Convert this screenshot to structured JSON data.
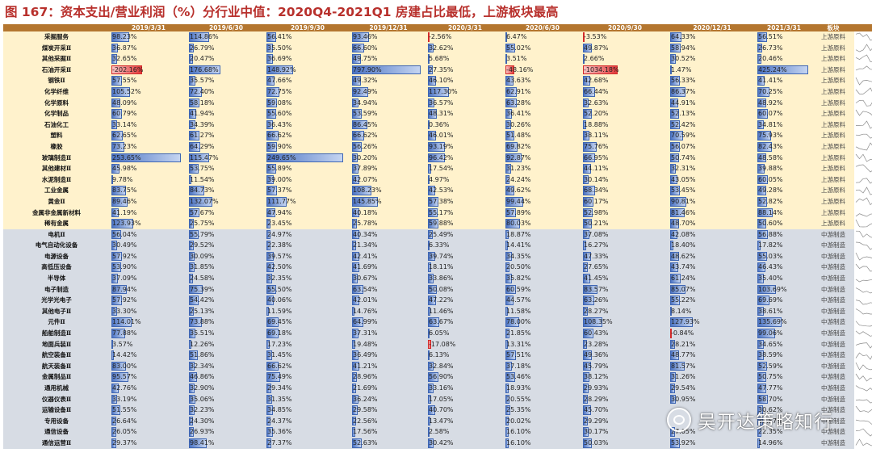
{
  "title": "图 167：资本支出/营业利润（%）分行业中值：2020Q4-2021Q1 房建占比最低，上游板块最高",
  "watermark": "吴开达策略知行",
  "colors": {
    "bar": "#4c74c4",
    "neg_bar": "#e33b3b",
    "header": "#b4762f",
    "upstream_bg": "#fff2cc",
    "midstream_bg": "#d7dce4"
  },
  "chart_data": {
    "type": "table",
    "columns": [
      "",
      "2019/3/31",
      "2019/6/30",
      "2019/9/30",
      "2019/12/31",
      "2020/3/31",
      "2020/6/30",
      "2020/9/30",
      "2020/12/31",
      "2021/3/31",
      "板块",
      ""
    ],
    "unit": "%",
    "rows": [
      {
        "name": "采掘服务",
        "group": "上游原料",
        "values": [
          "98.23%",
          "114.86%",
          "56.41%",
          "93.46%",
          "-2.56%",
          "6.47%",
          "-3.53%",
          "64.33%",
          "56.51%"
        ]
      },
      {
        "name": "煤炭开采Ⅱ",
        "group": "上游原料",
        "values": [
          "36.87%",
          "26.79%",
          "35.50%",
          "66.60%",
          "32.62%",
          "55.02%",
          "49.87%",
          "58.94%",
          "26.73%"
        ]
      },
      {
        "name": "其他采掘Ⅱ",
        "group": "上游原料",
        "values": [
          "32.65%",
          "20.47%",
          "36.69%",
          "49.75%",
          "5.68%",
          "3.51%",
          "2.66%",
          "30.52%",
          "20.46%"
        ]
      },
      {
        "name": "石油开采Ⅱ",
        "group": "上游原料",
        "values": [
          "-202.16%",
          "176.68%",
          "148.92%",
          "797.90%",
          "27.35%",
          "-48.16%",
          "-1034.18%",
          "1.47%",
          "425.24%"
        ]
      },
      {
        "name": "钢铁Ⅱ",
        "group": "上游原料",
        "values": [
          "57.55%",
          "35.57%",
          "47.66%",
          "49.32%",
          "46.10%",
          "43.63%",
          "42.68%",
          "56.33%",
          "41.41%"
        ]
      },
      {
        "name": "化学纤维",
        "group": "上游原料",
        "values": [
          "105.52%",
          "72.40%",
          "72.75%",
          "92.49%",
          "117.30%",
          "62.91%",
          "66.44%",
          "86.37%",
          "70.25%"
        ]
      },
      {
        "name": "化学原料",
        "group": "上游原料",
        "values": [
          "48.09%",
          "58.18%",
          "59.08%",
          "34.94%",
          "36.57%",
          "63.28%",
          "32.63%",
          "44.91%",
          "48.92%"
        ]
      },
      {
        "name": "化学制品",
        "group": "上游原料",
        "values": [
          "60.79%",
          "41.94%",
          "55.60%",
          "53.59%",
          "48.31%",
          "36.41%",
          "52.20%",
          "52.13%",
          "60.07%"
        ]
      },
      {
        "name": "石油化工",
        "group": "上游原料",
        "values": [
          "33.14%",
          "34.39%",
          "36.43%",
          "86.45%",
          "0.36%",
          "30.26%",
          "18.88%",
          "52.42%",
          "34.81%"
        ]
      },
      {
        "name": "塑料",
        "group": "上游原料",
        "values": [
          "62.65%",
          "61.27%",
          "66.62%",
          "66.62%",
          "46.01%",
          "51.48%",
          "38.11%",
          "70.59%",
          "75.93%"
        ]
      },
      {
        "name": "橡胶",
        "group": "上游原料",
        "values": [
          "73.23%",
          "64.29%",
          "59.90%",
          "56.26%",
          "93.19%",
          "69.82%",
          "75.76%",
          "56.07%",
          "82.43%"
        ]
      },
      {
        "name": "玻璃制造Ⅱ",
        "group": "上游原料",
        "values": [
          "253.65%",
          "115.47%",
          "249.65%",
          "30.20%",
          "96.42%",
          "92.87%",
          "66.95%",
          "50.74%",
          "48.58%"
        ]
      },
      {
        "name": "其他建材Ⅱ",
        "group": "上游原料",
        "values": [
          "45.98%",
          "53.75%",
          "55.89%",
          "37.89%",
          "17.54%",
          "31.23%",
          "44.11%",
          "32.31%",
          "39.88%"
        ]
      },
      {
        "name": "水泥制造Ⅱ",
        "group": "上游原料",
        "values": [
          "9.78%",
          "11.54%",
          "39.00%",
          "42.07%",
          "4.97%",
          "24.24%",
          "30.14%",
          "43.05%",
          "60.05%"
        ]
      },
      {
        "name": "工业金属",
        "group": "上游原料",
        "values": [
          "83.75%",
          "84.73%",
          "57.37%",
          "108.23%",
          "42.53%",
          "49.62%",
          "68.34%",
          "53.45%",
          "49.28%"
        ]
      },
      {
        "name": "黄金Ⅱ",
        "group": "上游原料",
        "values": [
          "89.46%",
          "132.07%",
          "111.77%",
          "145.85%",
          "57.38%",
          "99.44%",
          "60.17%",
          "90.81%",
          "52.82%"
        ]
      },
      {
        "name": "金属非金属新材料",
        "group": "上游原料",
        "values": [
          "41.19%",
          "57.67%",
          "47.94%",
          "40.18%",
          "55.17%",
          "57.89%",
          "52.98%",
          "81.46%",
          "88.14%"
        ]
      },
      {
        "name": "稀有金属",
        "group": "上游原料",
        "values": [
          "123.93%",
          "25.75%",
          "23.45%",
          "25.78%",
          "59.88%",
          "80.03%",
          "50.21%",
          "48.70%",
          "50.60%"
        ]
      },
      {
        "name": "电机Ⅱ",
        "group": "中游制造",
        "values": [
          "56.04%",
          "55.79%",
          "24.97%",
          "40.34%",
          "25.49%",
          "18.87%",
          "37.08%",
          "42.08%",
          "56.88%"
        ]
      },
      {
        "name": "电气自动化设备",
        "group": "中游制造",
        "values": [
          "30.49%",
          "29.52%",
          "22.38%",
          "21.34%",
          "6.33%",
          "14.41%",
          "16.27%",
          "18.40%",
          "17.82%"
        ]
      },
      {
        "name": "电源设备",
        "group": "中游制造",
        "values": [
          "57.92%",
          "30.09%",
          "39.57%",
          "42.41%",
          "39.74%",
          "34.35%",
          "47.33%",
          "48.62%",
          "55.03%"
        ]
      },
      {
        "name": "高低压设备",
        "group": "中游制造",
        "values": [
          "53.90%",
          "31.85%",
          "42.50%",
          "41.69%",
          "18.11%",
          "20.50%",
          "27.65%",
          "43.74%",
          "46.43%"
        ]
      },
      {
        "name": "半导体",
        "group": "中游制造",
        "values": [
          "37.09%",
          "24.58%",
          "32.35%",
          "30.67%",
          "33.86%",
          "35.82%",
          "41.45%",
          "61.24%",
          "35.40%"
        ]
      },
      {
        "name": "电子制造",
        "group": "中游制造",
        "values": [
          "87.94%",
          "75.39%",
          "55.50%",
          "63.54%",
          "50.08%",
          "60.59%",
          "83.57%",
          "85.07%",
          "103.69%"
        ]
      },
      {
        "name": "光学光电子",
        "group": "中游制造",
        "values": [
          "57.92%",
          "54.42%",
          "40.06%",
          "42.01%",
          "47.22%",
          "44.57%",
          "63.26%",
          "55.22%",
          "69.69%"
        ]
      },
      {
        "name": "其他电子Ⅱ",
        "group": "中游制造",
        "values": [
          "33.30%",
          "25.13%",
          "11.59%",
          "14.76%",
          "11.46%",
          "11.58%",
          "28.27%",
          "8.14%",
          "38.61%"
        ]
      },
      {
        "name": "元件Ⅱ",
        "group": "中游制造",
        "values": [
          "114.01%",
          "73.88%",
          "69.45%",
          "64.99%",
          "63.67%",
          "78.00%",
          "108.35%",
          "127.93%",
          "135.69%"
        ]
      },
      {
        "name": "船舶制造Ⅱ",
        "group": "中游制造",
        "values": [
          "77.88%",
          "35.51%",
          "69.18%",
          "37.31%",
          "6.05%",
          "21.85%",
          "60.43%",
          "-0.84%",
          "99.06%"
        ]
      },
      {
        "name": "地面兵装Ⅱ",
        "group": "中游制造",
        "values": [
          "3.57%",
          "12.26%",
          "17.23%",
          "19.48%",
          "-17.08%",
          "13.31%",
          "23.28%",
          "28.21%",
          "34.65%"
        ]
      },
      {
        "name": "航空装备Ⅱ",
        "group": "中游制造",
        "values": [
          "14.42%",
          "51.86%",
          "31.45%",
          "36.49%",
          "6.13%",
          "57.51%",
          "49.36%",
          "48.77%",
          "38.59%"
        ]
      },
      {
        "name": "航天装备Ⅱ",
        "group": "中游制造",
        "values": [
          "83.00%",
          "32.34%",
          "66.62%",
          "41.21%",
          "32.84%",
          "37.18%",
          "45.79%",
          "81.57%",
          "52.59%"
        ]
      },
      {
        "name": "金属制品Ⅱ",
        "group": "中游制造",
        "values": [
          "95.57%",
          "46.86%",
          "75.49%",
          "28.96%",
          "56.90%",
          "53.46%",
          "38.12%",
          "31.26%",
          "50.75%"
        ]
      },
      {
        "name": "通用机械",
        "group": "中游制造",
        "values": [
          "42.76%",
          "32.90%",
          "29.34%",
          "21.69%",
          "33.16%",
          "18.93%",
          "29.93%",
          "29.54%",
          "47.77%"
        ]
      },
      {
        "name": "仪器仪表Ⅱ",
        "group": "中游制造",
        "values": [
          "33.19%",
          "35.06%",
          "31.35%",
          "36.24%",
          "17.05%",
          "20.55%",
          "28.29%",
          "30.95%",
          "58.70%"
        ]
      },
      {
        "name": "运输设备Ⅱ",
        "group": "中游制造",
        "values": [
          "51.55%",
          "32.23%",
          "34.85%",
          "29.58%",
          "40.70%",
          "25.35%",
          "45.70%",
          "",
          "30.62%"
        ]
      },
      {
        "name": "专用设备",
        "group": "中游制造",
        "values": [
          "26.64%",
          "24.30%",
          "24.37%",
          "22.56%",
          "13.47%",
          "20.02%",
          "29.29%",
          "",
          "33.57%"
        ]
      },
      {
        "name": "通信设备",
        "group": "中游制造",
        "values": [
          "26.05%",
          "26.93%",
          "35.36%",
          "17.56%",
          "2.58%",
          "16.10%",
          "30.17%",
          "27.05%",
          "22.35%"
        ]
      },
      {
        "name": "通信运营Ⅱ",
        "group": "中游制造",
        "values": [
          "29.37%",
          "98.41%",
          "27.37%",
          "52.63%",
          "30.42%",
          "16.10%",
          "50.03%",
          "53.92%",
          "14.96%"
        ]
      }
    ]
  }
}
